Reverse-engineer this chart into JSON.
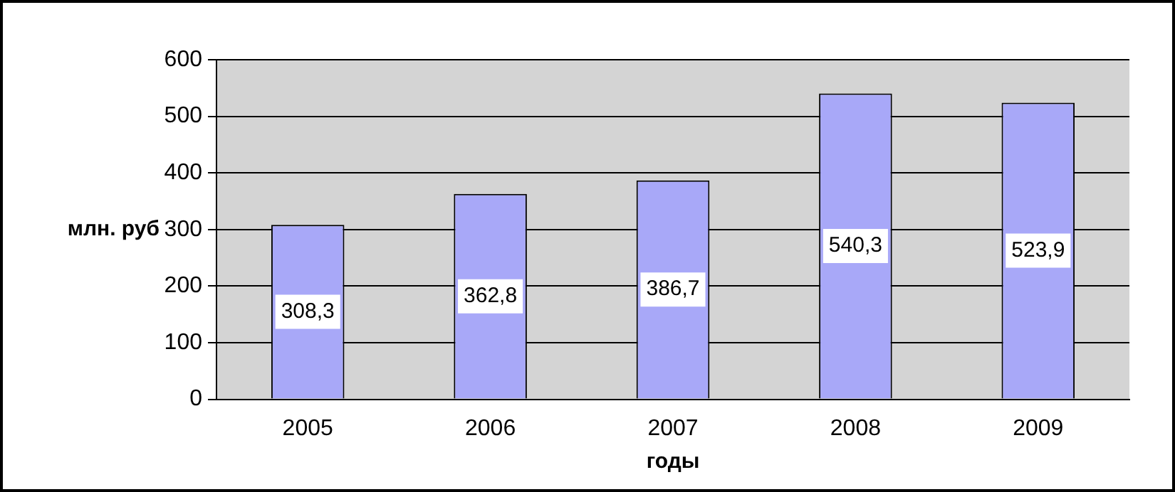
{
  "chart_data": {
    "type": "bar",
    "xlabel": "годы",
    "ylabel": "млн. руб",
    "categories": [
      "2005",
      "2006",
      "2007",
      "2008",
      "2009"
    ],
    "values": [
      308.3,
      362.8,
      386.7,
      540.3,
      523.9
    ],
    "value_labels": [
      "308,3",
      "362,8",
      "386,7",
      "540,3",
      "523,9"
    ],
    "color": "#a8a8f8",
    "ylim": [
      0,
      600
    ],
    "yticks": [
      0,
      100,
      200,
      300,
      400,
      500,
      600
    ],
    "grid": "y",
    "legend": false
  }
}
